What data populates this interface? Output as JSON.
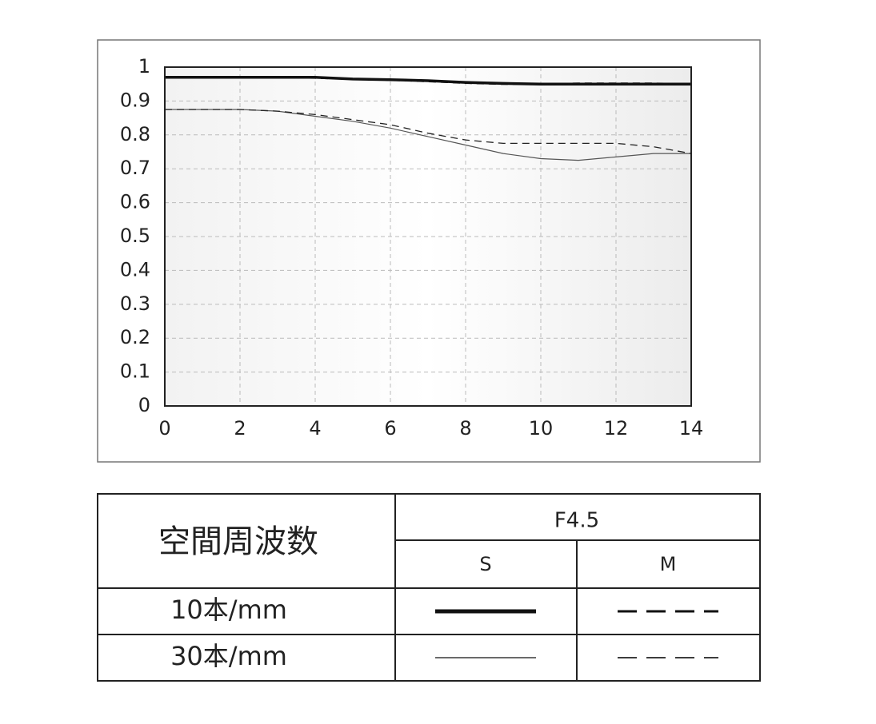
{
  "chart_data": {
    "type": "line",
    "x": [
      0,
      1,
      2,
      3,
      4,
      5,
      6,
      7,
      8,
      9,
      10,
      11,
      12,
      13,
      14
    ],
    "series": [
      {
        "color": "#111111",
        "width": 3.5,
        "dash": "none",
        "values": [
          0.97,
          0.97,
          0.97,
          0.97,
          0.97,
          0.965,
          0.963,
          0.96,
          0.955,
          0.952,
          0.95,
          0.95,
          0.95,
          0.95,
          0.95
        ]
      },
      {
        "color": "#111111",
        "width": 2.2,
        "dash": "9 6",
        "values": [
          0.97,
          0.97,
          0.97,
          0.97,
          0.968,
          0.965,
          0.962,
          0.958,
          0.953,
          0.95,
          0.95,
          0.952,
          0.952,
          0.952,
          0.95
        ]
      },
      {
        "color": "#555555",
        "width": 1.2,
        "dash": "none",
        "values": [
          0.875,
          0.875,
          0.875,
          0.87,
          0.855,
          0.84,
          0.82,
          0.795,
          0.77,
          0.745,
          0.73,
          0.725,
          0.735,
          0.745,
          0.745
        ]
      },
      {
        "color": "#222222",
        "width": 1.3,
        "dash": "9 6",
        "values": [
          0.875,
          0.875,
          0.875,
          0.87,
          0.86,
          0.845,
          0.83,
          0.805,
          0.785,
          0.775,
          0.775,
          0.775,
          0.775,
          0.765,
          0.745
        ]
      }
    ],
    "xlim": [
      0,
      14
    ],
    "xticks": [
      0,
      2,
      4,
      6,
      8,
      10,
      12,
      14
    ],
    "ylim": [
      0,
      1
    ],
    "yticks": [
      0,
      0.1,
      0.2,
      0.3,
      0.4,
      0.5,
      0.6,
      0.7,
      0.8,
      0.9,
      1
    ],
    "grid": true
  },
  "table": {
    "corner": "空間周波数",
    "aperture": "F4.5",
    "columns": [
      "S",
      "M"
    ],
    "rows": [
      "10本/mm",
      "30本/mm"
    ]
  }
}
